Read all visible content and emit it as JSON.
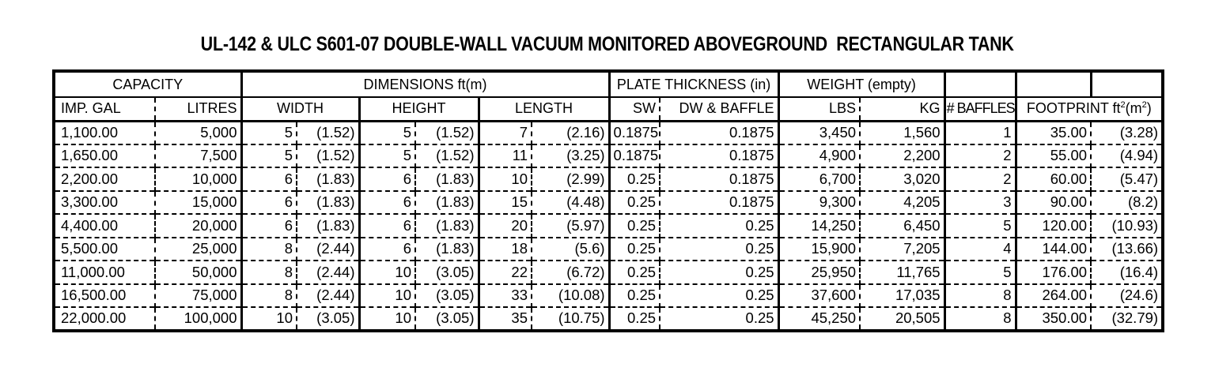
{
  "title": "UL-142 & ULC S601-07 DOUBLE-WALL VACUUM MONITORED ABOVEGROUND  RECTANGULAR TANK",
  "table": {
    "groups": {
      "capacity": "CAPACITY",
      "dimensions": "DIMENSIONS ft(m)",
      "plate_thickness": "PLATE THICKNESS (in)",
      "weight": "WEIGHT (empty)"
    },
    "columns": {
      "imp_gal": "IMP. GAL",
      "litres": "LITRES",
      "width": "WIDTH",
      "height": "HEIGHT",
      "length": "LENGTH",
      "sw": "SW",
      "dw_baffle": "DW & BAFFLE",
      "lbs": "LBS",
      "kg": "KG",
      "baffles": "# BAFFLES",
      "footprint_prefix": "FOOTPRINT ft",
      "footprint_sup1": "2",
      "footprint_mid": "(m",
      "footprint_sup2": "2",
      "footprint_suffix": ")"
    },
    "rows": [
      [
        "1,100.00",
        "5,000",
        "5",
        "(1.52)",
        "5",
        "(1.52)",
        "7",
        "(2.16)",
        "0.1875",
        "0.1875",
        "3,450",
        "1,560",
        "1",
        "35.00",
        "(3.28)"
      ],
      [
        "1,650.00",
        "7,500",
        "5",
        "(1.52)",
        "5",
        "(1.52)",
        "11",
        "(3.25)",
        "0.1875",
        "0.1875",
        "4,900",
        "2,200",
        "2",
        "55.00",
        "(4.94)"
      ],
      [
        "2,200.00",
        "10,000",
        "6",
        "(1.83)",
        "6",
        "(1.83)",
        "10",
        "(2.99)",
        "0.25",
        "0.1875",
        "6,700",
        "3,020",
        "2",
        "60.00",
        "(5.47)"
      ],
      [
        "3,300.00",
        "15,000",
        "6",
        "(1.83)",
        "6",
        "(1.83)",
        "15",
        "(4.48)",
        "0.25",
        "0.1875",
        "9,300",
        "4,205",
        "3",
        "90.00",
        "(8.2)"
      ],
      [
        "4,400.00",
        "20,000",
        "6",
        "(1.83)",
        "6",
        "(1.83)",
        "20",
        "(5.97)",
        "0.25",
        "0.25",
        "14,250",
        "6,450",
        "5",
        "120.00",
        "(10.93)"
      ],
      [
        "5,500.00",
        "25,000",
        "8",
        "(2.44)",
        "6",
        "(1.83)",
        "18",
        "(5.6)",
        "0.25",
        "0.25",
        "15,900",
        "7,205",
        "4",
        "144.00",
        "(13.66)"
      ],
      [
        "11,000.00",
        "50,000",
        "8",
        "(2.44)",
        "10",
        "(3.05)",
        "22",
        "(6.72)",
        "0.25",
        "0.25",
        "25,950",
        "11,765",
        "5",
        "176.00",
        "(16.4)"
      ],
      [
        "16,500.00",
        "75,000",
        "8",
        "(2.44)",
        "10",
        "(3.05)",
        "33",
        "(10.08)",
        "0.25",
        "0.25",
        "37,600",
        "17,035",
        "8",
        "264.00",
        "(24.6)"
      ],
      [
        "22,000.00",
        "100,000",
        "10",
        "(3.05)",
        "10",
        "(3.05)",
        "35",
        "(10.75)",
        "0.25",
        "0.25",
        "45,250",
        "20,505",
        "8",
        "350.00",
        "(32.79)"
      ]
    ]
  }
}
